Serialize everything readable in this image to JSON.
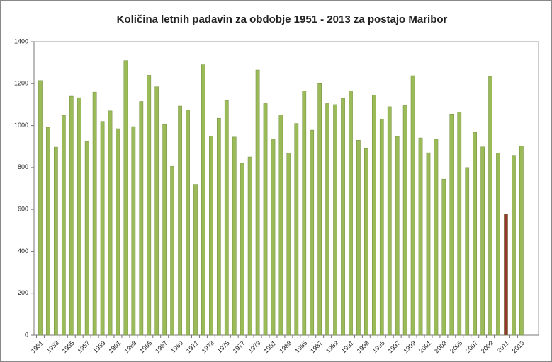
{
  "chart_data": {
    "type": "bar",
    "title": "Količina letnih padavin za obdobje 1951 - 2013 za postajo Maribor",
    "categories": [
      "1951",
      null,
      "1953",
      null,
      "1955",
      null,
      "1957",
      null,
      "1959",
      null,
      "1961",
      null,
      "1963",
      null,
      "1965",
      null,
      "1967",
      null,
      "1969",
      null,
      "1971",
      null,
      "1973",
      null,
      "1975",
      null,
      "1977",
      null,
      "1979",
      null,
      "1981",
      null,
      "1983",
      null,
      "1985",
      null,
      "1987",
      null,
      "1989",
      null,
      "1991",
      null,
      "1993",
      null,
      "1995",
      null,
      "1997",
      null,
      "1999",
      null,
      "2001",
      null,
      "2003",
      null,
      "2005",
      null,
      "2007",
      null,
      "2009",
      null,
      "2011",
      null,
      "2013"
    ],
    "values": [
      1215,
      992,
      897,
      1049,
      1140,
      1133,
      924,
      1160,
      1020,
      1070,
      985,
      1310,
      995,
      1115,
      1240,
      1185,
      1005,
      805,
      1093,
      1075,
      720,
      1290,
      950,
      1035,
      1120,
      945,
      820,
      850,
      1265,
      1105,
      935,
      1050,
      868,
      1010,
      1165,
      978,
      1200,
      1105,
      1100,
      1130,
      1165,
      930,
      890,
      1145,
      1030,
      1090,
      948,
      1095,
      1238,
      941,
      870,
      935,
      745,
      1055,
      1065,
      800,
      968,
      898,
      1235,
      868,
      577,
      858,
      902
    ],
    "colors": [
      "#9bbb59",
      "#9bbb59",
      "#9bbb59",
      "#9bbb59",
      "#9bbb59",
      "#9bbb59",
      "#9bbb59",
      "#9bbb59",
      "#9bbb59",
      "#9bbb59",
      "#9bbb59",
      "#9bbb59",
      "#9bbb59",
      "#9bbb59",
      "#9bbb59",
      "#9bbb59",
      "#9bbb59",
      "#9bbb59",
      "#9bbb59",
      "#9bbb59",
      "#9bbb59",
      "#9bbb59",
      "#9bbb59",
      "#9bbb59",
      "#9bbb59",
      "#9bbb59",
      "#9bbb59",
      "#9bbb59",
      "#9bbb59",
      "#9bbb59",
      "#9bbb59",
      "#9bbb59",
      "#9bbb59",
      "#9bbb59",
      "#9bbb59",
      "#9bbb59",
      "#9bbb59",
      "#9bbb59",
      "#9bbb59",
      "#9bbb59",
      "#9bbb59",
      "#9bbb59",
      "#9bbb59",
      "#9bbb59",
      "#9bbb59",
      "#9bbb59",
      "#9bbb59",
      "#9bbb59",
      "#9bbb59",
      "#9bbb59",
      "#9bbb59",
      "#9bbb59",
      "#9bbb59",
      "#9bbb59",
      "#9bbb59",
      "#9bbb59",
      "#9bbb59",
      "#9bbb59",
      "#9bbb59",
      "#9bbb59",
      "#943634",
      "#9bbb59",
      "#9bbb59"
    ],
    "ylim": [
      0,
      1400
    ],
    "yticks": [
      0,
      200,
      400,
      600,
      800,
      1000,
      1200,
      1400
    ],
    "grid": false
  }
}
